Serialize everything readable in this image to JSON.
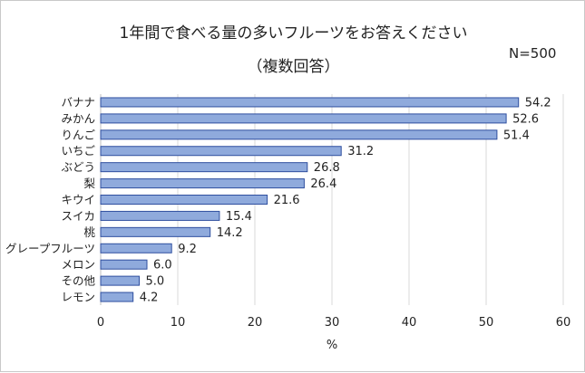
{
  "chart_data": {
    "type": "bar",
    "orientation": "horizontal",
    "title": "1年間で食べる量の多いフルーツをお答えください",
    "subtitle": "（複数回答）",
    "annotation": "N=500",
    "xlabel": "%",
    "ylabel": "",
    "xlim": [
      0,
      60
    ],
    "xticks": [
      0,
      10,
      20,
      30,
      40,
      50,
      60
    ],
    "grid": true,
    "categories": [
      "バナナ",
      "みかん",
      "りんご",
      "いちご",
      "ぶどう",
      "梨",
      "キウイ",
      "スイカ",
      "桃",
      "グレープフルーツ",
      "メロン",
      "その他",
      "レモン"
    ],
    "values": [
      54.2,
      52.6,
      51.4,
      31.2,
      26.8,
      26.4,
      21.6,
      15.4,
      14.2,
      9.2,
      6.0,
      5.0,
      4.2
    ],
    "value_labels": [
      "54.2",
      "52.6",
      "51.4",
      "31.2",
      "26.8",
      "26.4",
      "21.6",
      "15.4",
      "14.2",
      "9.2",
      "6.0",
      "5.0",
      "4.2"
    ],
    "bar_color": "#8faadc",
    "bar_edge_color": "#2f4f9f",
    "grid_color": "#d9d9d9"
  }
}
